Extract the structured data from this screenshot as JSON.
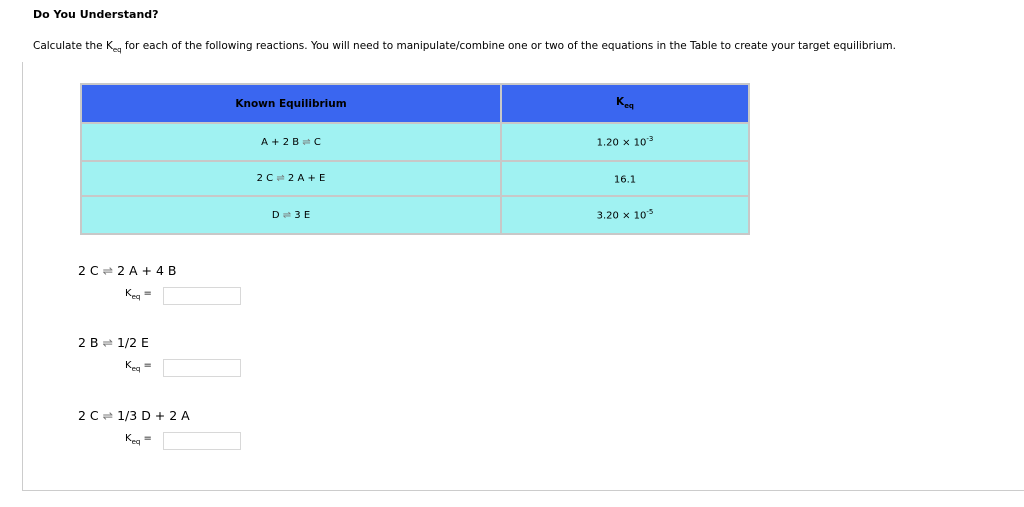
{
  "title": "Do You Understand?",
  "instructions": {
    "pre": "Calculate the K",
    "sub": "eq",
    "post": " for each of the following reactions. You will need to manipulate/combine one or two of the equations in the Table to create your target equilibrium."
  },
  "table": {
    "header_equilibrium": "Known Equilibrium",
    "header_k": "K",
    "header_k_sub": "eq",
    "rows": [
      {
        "left": "A + 2 B",
        "right": "C",
        "k_base": "1.20 × 10",
        "k_exp": "-3"
      },
      {
        "left": "2 C",
        "right": "2 A + E",
        "k_base": "16.1",
        "k_exp": ""
      },
      {
        "left": "D",
        "right": "3 E",
        "k_base": "3.20 × 10",
        "k_exp": "-5"
      }
    ]
  },
  "arrow": "⇌",
  "questions": [
    {
      "left": "2 C",
      "right": "2 A + 4 B",
      "k_label": "K",
      "k_sub": "eq",
      "equals": "=",
      "value": ""
    },
    {
      "left": "2 B",
      "right": "1/2 E",
      "k_label": "K",
      "k_sub": "eq",
      "equals": "=",
      "value": ""
    },
    {
      "left": "2 C",
      "right": "1/3 D + 2 A",
      "k_label": "K",
      "k_sub": "eq",
      "equals": "=",
      "value": ""
    }
  ]
}
